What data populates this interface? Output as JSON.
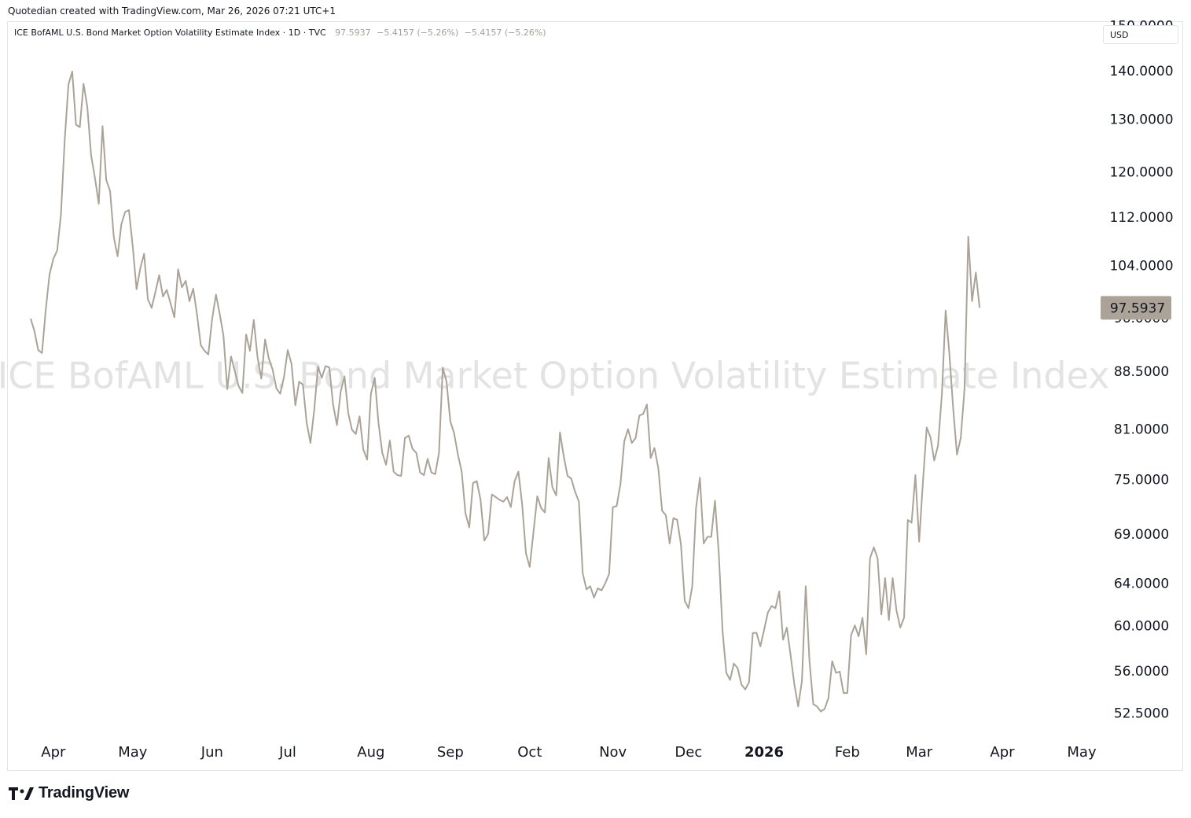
{
  "header": {
    "caption": "Quotedian created with TradingView.com, Mar 26, 2026 07:21 UTC+1"
  },
  "legend": {
    "title": "ICE BofAML U.S. Bond Market Option Volatility Estimate Index · 1D · TVC",
    "last": "97.5937",
    "change": "−5.4157 (−5.26%)",
    "change2": "−5.4157 (−5.26%)"
  },
  "currency": "USD",
  "watermark": "ICE BofAML U.S. Bond Market Option Volatility Estimate Index",
  "footer": {
    "brand": "TradingView"
  },
  "colors": {
    "line": "#aba398",
    "last_label_bg": "#aba398",
    "watermark": "#e3e3e3",
    "text": "#131722"
  },
  "chart_data": {
    "type": "line",
    "title": "ICE BofAML U.S. Bond Market Option Volatility Estimate Index",
    "scale": "log",
    "ylim": [
      50.5,
      151
    ],
    "y_ticks": [
      "150.0000",
      "140.0000",
      "130.0000",
      "120.0000",
      "112.0000",
      "104.0000",
      "96.0000",
      "88.5000",
      "81.0000",
      "75.0000",
      "69.0000",
      "64.0000",
      "60.0000",
      "56.0000",
      "52.5000"
    ],
    "x_labels": [
      "Apr",
      "May",
      "Jun",
      "Jul",
      "Aug",
      "Sep",
      "Oct",
      "Nov",
      "Dec",
      "2026",
      "Feb",
      "Mar",
      "Apr",
      "May"
    ],
    "x_labels_bold": [
      "2026"
    ],
    "x_index_range": [
      0,
      278
    ],
    "x_label_index": [
      6,
      27,
      48,
      68,
      90,
      111,
      132,
      154,
      174,
      194,
      216,
      235,
      257,
      278
    ],
    "last_value": "97.5937",
    "series": [
      {
        "name": "ICE BofAML U.S. Bond Market Option Volatility Estimate Index",
        "values": [
          96.0,
          94.2,
          91.5,
          91.1,
          97.3,
          102.7,
          105.2,
          106.5,
          112.5,
          126.1,
          137.3,
          140.0,
          129.1,
          128.6,
          137.4,
          132.6,
          123.2,
          119.0,
          114.4,
          128.8,
          118.6,
          116.7,
          108.7,
          105.6,
          110.9,
          113.0,
          113.3,
          107.1,
          100.4,
          103.7,
          106.0,
          98.9,
          97.6,
          100.0,
          102.6,
          99.3,
          100.3,
          98.3,
          96.2,
          103.5,
          100.7,
          101.7,
          98.6,
          100.5,
          96.6,
          92.2,
          91.4,
          90.9,
          95.9,
          99.6,
          96.7,
          93.5,
          86.2,
          90.6,
          88.6,
          86.6,
          85.7,
          93.7,
          91.4,
          95.8,
          90.5,
          87.6,
          93.0,
          90.3,
          88.8,
          86.3,
          85.6,
          87.8,
          91.5,
          89.6,
          84.1,
          87.2,
          86.8,
          81.9,
          79.4,
          83.5,
          89.2,
          87.7,
          89.3,
          89.1,
          84.2,
          81.6,
          85.9,
          87.9,
          83.1,
          81.0,
          80.5,
          82.7,
          78.6,
          77.4,
          85.6,
          87.7,
          81.8,
          78.2,
          76.8,
          79.7,
          76.0,
          75.6,
          75.5,
          80.0,
          80.3,
          78.7,
          78.2,
          75.9,
          75.6,
          77.5,
          75.9,
          75.7,
          78.2,
          89.1,
          87.2,
          82.1,
          80.6,
          78.0,
          76.0,
          71.3,
          69.8,
          74.7,
          74.9,
          72.8,
          68.4,
          69.1,
          73.4,
          73.1,
          72.8,
          72.6,
          73.1,
          72.0,
          74.9,
          76.0,
          72.3,
          67.1,
          65.7,
          69.3,
          73.2,
          71.9,
          71.4,
          77.6,
          74.2,
          73.3,
          80.7,
          77.8,
          75.5,
          75.2,
          73.7,
          72.6,
          65.1,
          63.5,
          63.8,
          62.7,
          63.6,
          63.4,
          64.1,
          65.0,
          72.0,
          72.1,
          74.6,
          79.6,
          81.1,
          79.4,
          80.0,
          82.8,
          83.0,
          84.2,
          77.6,
          78.8,
          76.4,
          71.6,
          71.1,
          68.1,
          70.8,
          70.6,
          68.0,
          62.4,
          61.7,
          63.8,
          71.9,
          75.3,
          68.1,
          68.8,
          68.8,
          72.7,
          67.1,
          59.6,
          55.9,
          55.3,
          56.7,
          56.3,
          54.9,
          54.5,
          55.1,
          59.4,
          59.4,
          58.2,
          59.7,
          61.3,
          61.9,
          61.7,
          63.3,
          58.8,
          59.9,
          57.4,
          54.9,
          53.1,
          55.2,
          63.8,
          56.9,
          53.3,
          53.1,
          52.7,
          52.9,
          53.8,
          56.9,
          55.9,
          56.0,
          54.2,
          54.2,
          59.2,
          60.1,
          59.1,
          60.8,
          57.5,
          66.6,
          67.7,
          66.6,
          61.1,
          64.6,
          60.6,
          64.6,
          61.5,
          59.9,
          60.8,
          70.6,
          70.3,
          75.6,
          68.3,
          74.8,
          81.3,
          80.1,
          77.3,
          79.1,
          85.5,
          97.2,
          90.9,
          83.7,
          78.0,
          80.0,
          86.2,
          108.8,
          98.6,
          103.0,
          97.6
        ]
      }
    ]
  }
}
